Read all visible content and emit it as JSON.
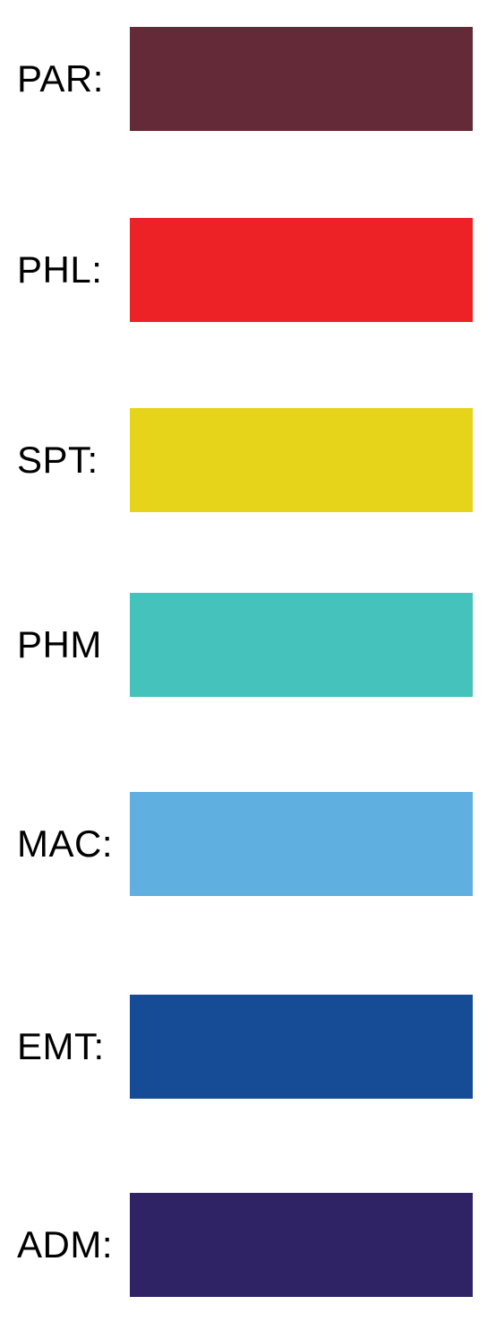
{
  "legend": {
    "items": [
      {
        "label": "PAR:",
        "color": "#652a38"
      },
      {
        "label": "PHL:",
        "color": "#ec2227"
      },
      {
        "label": "SPT:",
        "color": "#e6d41a"
      },
      {
        "label": "PHM",
        "color": "#44c2bb"
      },
      {
        "label": "MAC:",
        "color": "#5fafe0"
      },
      {
        "label": "EMT:",
        "color": "#164b95"
      },
      {
        "label": "ADM:",
        "color": "#2f2365"
      }
    ]
  }
}
